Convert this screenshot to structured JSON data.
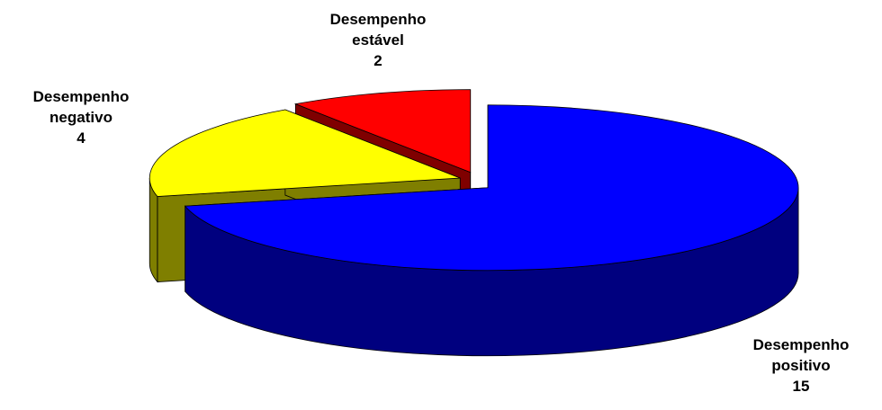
{
  "chart_data": {
    "type": "pie",
    "categories": [
      "Desempenho positivo",
      "Desempenho negativo",
      "Desempenho estável"
    ],
    "values": [
      15,
      4,
      2
    ],
    "colors": [
      "#0000ff",
      "#ffff00",
      "#ff0000"
    ]
  }
}
